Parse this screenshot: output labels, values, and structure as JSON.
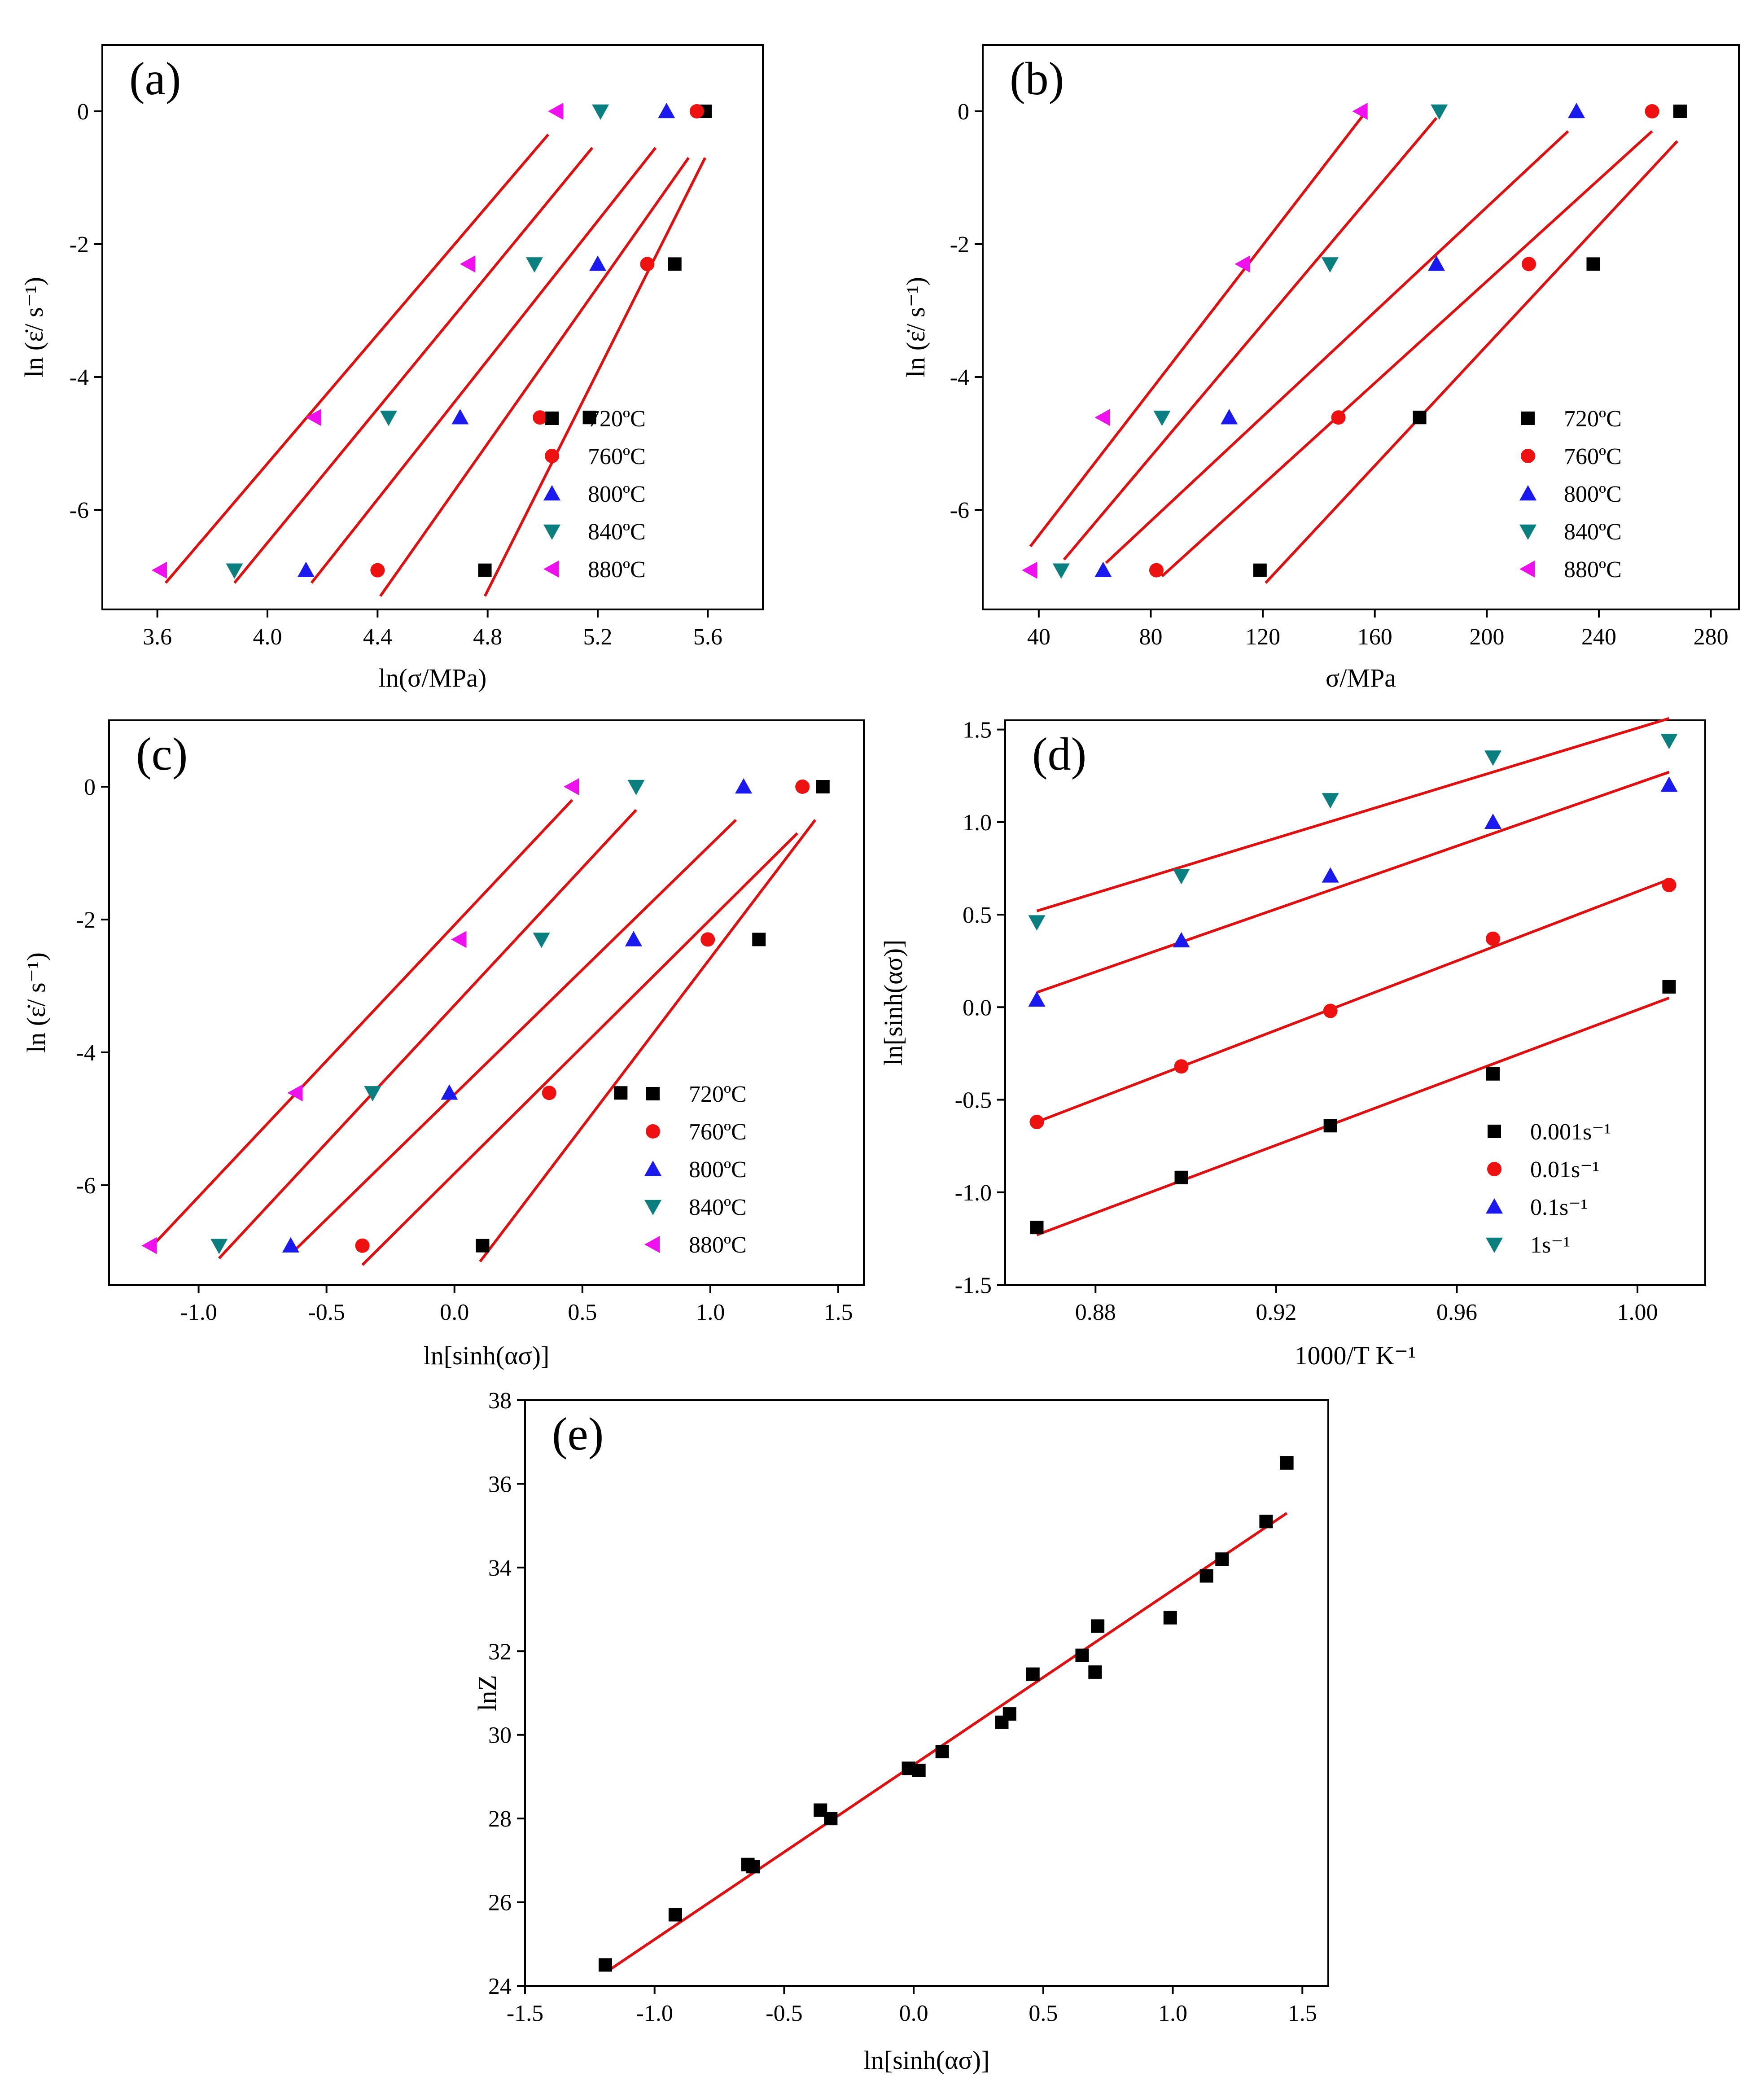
{
  "colors": {
    "black": "#000000",
    "red": "#ee1111",
    "blue": "#1a1aee",
    "teal": "#0b7f7f",
    "magenta": "#ee11ee",
    "fit": "#e01010"
  },
  "chart_data": [
    {
      "id": "a",
      "type": "scatter",
      "panel_label": "(a)",
      "xlabel": "ln(σ/MPa)",
      "ylabel": "ln (ε̇/ s⁻¹)",
      "xlim": [
        3.4,
        5.8
      ],
      "ylim": [
        -7.5,
        1.0
      ],
      "xticks": [
        3.6,
        4.0,
        4.4,
        4.8,
        5.2,
        5.6
      ],
      "xtick_labels": [
        "3.6",
        "4.0",
        "4.4",
        "4.8",
        "5.2",
        "5.6"
      ],
      "yticks": [
        0,
        -2,
        -4,
        -6
      ],
      "ytick_labels": [
        "0",
        "-2",
        "-4",
        "-6"
      ],
      "legend_position": "bottom-right",
      "series": [
        {
          "name": "720ºC",
          "marker": "square",
          "color": "#000000",
          "x": [
            4.79,
            5.17,
            5.48,
            5.59
          ],
          "y": [
            -6.91,
            -4.61,
            -2.3,
            0
          ],
          "fit": [
            [
              4.79,
              -7.3
            ],
            [
              5.59,
              -0.7
            ]
          ]
        },
        {
          "name": "760ºC",
          "marker": "circle",
          "color": "#ee1111",
          "x": [
            4.4,
            4.99,
            5.38,
            5.56
          ],
          "y": [
            -6.91,
            -4.61,
            -2.3,
            0
          ],
          "fit": [
            [
              4.41,
              -7.3
            ],
            [
              5.53,
              -0.7
            ]
          ]
        },
        {
          "name": "800ºC",
          "marker": "triangle-up",
          "color": "#1a1aee",
          "x": [
            4.14,
            4.7,
            5.2,
            5.45
          ],
          "y": [
            -6.91,
            -4.61,
            -2.3,
            0
          ],
          "fit": [
            [
              4.16,
              -7.1
            ],
            [
              5.41,
              -0.55
            ]
          ]
        },
        {
          "name": "840ºC",
          "marker": "triangle-down",
          "color": "#0b7f7f",
          "x": [
            3.88,
            4.44,
            4.97,
            5.21
          ],
          "y": [
            -6.91,
            -4.61,
            -2.3,
            0
          ],
          "fit": [
            [
              3.88,
              -7.1
            ],
            [
              5.18,
              -0.55
            ]
          ]
        },
        {
          "name": "880ºC",
          "marker": "triangle-left",
          "color": "#ee11ee",
          "x": [
            3.61,
            4.17,
            4.73,
            5.05
          ],
          "y": [
            -6.91,
            -4.61,
            -2.3,
            0
          ],
          "fit": [
            [
              3.63,
              -7.1
            ],
            [
              5.02,
              -0.35
            ]
          ]
        }
      ]
    },
    {
      "id": "b",
      "type": "scatter",
      "panel_label": "(b)",
      "xlabel": "σ/MPa",
      "ylabel": "ln (ε̇/ s⁻¹)",
      "xlim": [
        20,
        290
      ],
      "ylim": [
        -7.5,
        1.0
      ],
      "xticks": [
        40,
        80,
        120,
        160,
        200,
        240,
        280
      ],
      "xtick_labels": [
        "40",
        "80",
        "120",
        "160",
        "200",
        "240",
        "280"
      ],
      "yticks": [
        0,
        -2,
        -4,
        -6
      ],
      "ytick_labels": [
        "0",
        "-2",
        "-4",
        "-6"
      ],
      "legend_position": "bottom-right",
      "series": [
        {
          "name": "720ºC",
          "marker": "square",
          "color": "#000000",
          "x": [
            119,
            176,
            238,
            269
          ],
          "y": [
            -6.91,
            -4.61,
            -2.3,
            0
          ],
          "fit": [
            [
              121,
              -7.1
            ],
            [
              268,
              -0.45
            ]
          ]
        },
        {
          "name": "760ºC",
          "marker": "circle",
          "color": "#ee1111",
          "x": [
            82,
            147,
            215,
            259
          ],
          "y": [
            -6.91,
            -4.61,
            -2.3,
            0
          ],
          "fit": [
            [
              84,
              -7.0
            ],
            [
              259,
              -0.3
            ]
          ]
        },
        {
          "name": "800ºC",
          "marker": "triangle-up",
          "color": "#1a1aee",
          "x": [
            63,
            108,
            182,
            232
          ],
          "y": [
            -6.91,
            -4.61,
            -2.3,
            0
          ],
          "fit": [
            [
              64,
              -6.8
            ],
            [
              229,
              -0.3
            ]
          ]
        },
        {
          "name": "840ºC",
          "marker": "triangle-down",
          "color": "#0b7f7f",
          "x": [
            48,
            84,
            144,
            183
          ],
          "y": [
            -6.91,
            -4.61,
            -2.3,
            0
          ],
          "fit": [
            [
              49,
              -6.75
            ],
            [
              182,
              -0.1
            ]
          ]
        },
        {
          "name": "880ºC",
          "marker": "triangle-left",
          "color": "#ee11ee",
          "x": [
            37,
            63,
            113,
            155
          ],
          "y": [
            -6.91,
            -4.61,
            -2.3,
            0
          ],
          "fit": [
            [
              37,
              -6.55
            ],
            [
              156,
              -0.05
            ]
          ]
        }
      ]
    },
    {
      "id": "c",
      "type": "scatter",
      "panel_label": "(c)",
      "xlabel": "ln[sinh(ασ)]",
      "ylabel": "ln (ε̇/ s⁻¹)",
      "xlim": [
        -1.35,
        1.6
      ],
      "ylim": [
        -7.5,
        1.0
      ],
      "xticks": [
        -1.0,
        -0.5,
        0.0,
        0.5,
        1.0,
        1.5
      ],
      "xtick_labels": [
        "-1.0",
        "-0.5",
        "0.0",
        "0.5",
        "1.0",
        "1.5"
      ],
      "yticks": [
        0,
        -2,
        -4,
        -6
      ],
      "ytick_labels": [
        "0",
        "-2",
        "-4",
        "-6"
      ],
      "legend_position": "bottom-right",
      "series": [
        {
          "name": "720ºC",
          "marker": "square",
          "color": "#000000",
          "x": [
            0.11,
            0.65,
            1.19,
            1.44
          ],
          "y": [
            -6.91,
            -4.61,
            -2.3,
            0
          ],
          "fit": [
            [
              0.1,
              -7.15
            ],
            [
              1.41,
              -0.5
            ]
          ]
        },
        {
          "name": "760ºC",
          "marker": "circle",
          "color": "#ee1111",
          "x": [
            -0.36,
            0.37,
            0.99,
            1.36
          ],
          "y": [
            -6.91,
            -4.61,
            -2.3,
            0
          ],
          "fit": [
            [
              -0.36,
              -7.2
            ],
            [
              1.34,
              -0.7
            ]
          ]
        },
        {
          "name": "800ºC",
          "marker": "triangle-up",
          "color": "#1a1aee",
          "x": [
            -0.64,
            -0.02,
            0.7,
            1.13
          ],
          "y": [
            -6.91,
            -4.61,
            -2.3,
            0
          ],
          "fit": [
            [
              -0.63,
              -7.0
            ],
            [
              1.1,
              -0.5
            ]
          ]
        },
        {
          "name": "840ºC",
          "marker": "triangle-down",
          "color": "#0b7f7f",
          "x": [
            -0.92,
            -0.32,
            0.34,
            0.71
          ],
          "y": [
            -6.91,
            -4.61,
            -2.3,
            0
          ],
          "fit": [
            [
              -0.92,
              -7.1
            ],
            [
              0.71,
              -0.35
            ]
          ]
        },
        {
          "name": "880ºC",
          "marker": "triangle-left",
          "color": "#ee11ee",
          "x": [
            -1.19,
            -0.62,
            0.02,
            0.46
          ],
          "y": [
            -6.91,
            -4.61,
            -2.3,
            0
          ],
          "fit": [
            [
              -1.19,
              -6.95
            ],
            [
              0.46,
              -0.2
            ]
          ]
        }
      ]
    },
    {
      "id": "d",
      "type": "scatter",
      "panel_label": "(d)",
      "xlabel": "1000/T K⁻¹",
      "ylabel": "ln[sinh(ασ)]",
      "xlim": [
        0.86,
        1.015
      ],
      "ylim": [
        -1.5,
        1.55
      ],
      "xticks": [
        0.88,
        0.92,
        0.96,
        1.0
      ],
      "xtick_labels": [
        "0.88",
        "0.92",
        "0.96",
        "1.00"
      ],
      "yticks": [
        -1.5,
        -1.0,
        -0.5,
        0.0,
        0.5,
        1.0,
        1.5
      ],
      "ytick_labels": [
        "-1.5",
        "-1.0",
        "-0.5",
        "0.0",
        "0.5",
        "1.0",
        "1.5"
      ],
      "legend_position": "bottom-right",
      "series": [
        {
          "name": "0.001s⁻¹",
          "marker": "square",
          "color": "#000000",
          "x": [
            0.867,
            0.899,
            0.932,
            0.968,
            1.007
          ],
          "y": [
            -1.19,
            -0.92,
            -0.64,
            -0.36,
            0.11
          ],
          "fit": [
            [
              0.867,
              -1.23
            ],
            [
              1.007,
              0.05
            ]
          ]
        },
        {
          "name": "0.01s⁻¹",
          "marker": "circle",
          "color": "#ee1111",
          "x": [
            0.867,
            0.899,
            0.932,
            0.968,
            1.007
          ],
          "y": [
            -0.62,
            -0.32,
            -0.02,
            0.37,
            0.66
          ],
          "fit": [
            [
              0.867,
              -0.62
            ],
            [
              1.007,
              0.69
            ]
          ]
        },
        {
          "name": "0.1s⁻¹",
          "marker": "triangle-up",
          "color": "#1a1aee",
          "x": [
            0.867,
            0.899,
            0.932,
            0.968,
            1.007
          ],
          "y": [
            0.04,
            0.36,
            0.71,
            1.0,
            1.2
          ],
          "fit": [
            [
              0.867,
              0.08
            ],
            [
              1.007,
              1.27
            ]
          ]
        },
        {
          "name": "1s⁻¹",
          "marker": "triangle-down",
          "color": "#0b7f7f",
          "x": [
            0.867,
            0.899,
            0.932,
            0.968,
            1.007
          ],
          "y": [
            0.46,
            0.71,
            1.12,
            1.35,
            1.44
          ],
          "fit": [
            [
              0.867,
              0.52
            ],
            [
              1.007,
              1.56
            ]
          ]
        }
      ]
    },
    {
      "id": "e",
      "type": "scatter",
      "panel_label": "(e)",
      "xlabel": "ln[sinh(ασ)]",
      "ylabel": "lnZ",
      "xlim": [
        -1.5,
        1.6
      ],
      "ylim": [
        24,
        38
      ],
      "xticks": [
        -1.5,
        -1.0,
        -0.5,
        0.0,
        0.5,
        1.0,
        1.5
      ],
      "xtick_labels": [
        "-1.5",
        "-1.0",
        "-0.5",
        "0.0",
        "0.5",
        "1.0",
        "1.5"
      ],
      "yticks": [
        24,
        26,
        28,
        30,
        32,
        34,
        36,
        38
      ],
      "ytick_labels": [
        "24",
        "26",
        "28",
        "30",
        "32",
        "34",
        "36",
        "38"
      ],
      "legend_position": "none",
      "series": [
        {
          "name": "lnZ",
          "marker": "square",
          "color": "#000000",
          "x": [
            -1.19,
            -0.92,
            -0.64,
            -0.62,
            -0.36,
            -0.32,
            -0.02,
            0.02,
            0.11,
            0.34,
            0.37,
            0.46,
            0.65,
            0.7,
            0.71,
            0.99,
            1.13,
            1.19,
            1.36,
            1.44
          ],
          "y": [
            24.5,
            25.7,
            26.9,
            26.85,
            28.2,
            28.0,
            29.2,
            29.15,
            29.6,
            30.3,
            30.5,
            31.45,
            31.9,
            31.5,
            32.6,
            32.8,
            33.8,
            34.2,
            35.1,
            36.5
          ],
          "fit": [
            [
              -1.17,
              24.4
            ],
            [
              1.44,
              35.3
            ]
          ]
        }
      ]
    }
  ]
}
